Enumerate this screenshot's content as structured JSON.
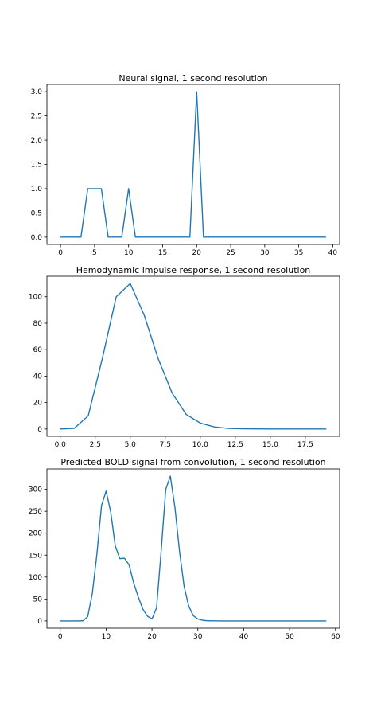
{
  "chart_data": [
    {
      "type": "line",
      "title": "Neural signal, 1 second resolution",
      "xlabel": "",
      "ylabel": "",
      "xlim": [
        -2,
        41
      ],
      "ylim": [
        -0.15,
        3.15
      ],
      "xticks": [
        0,
        5,
        10,
        15,
        20,
        25,
        30,
        35,
        40
      ],
      "xtick_labels": [
        "0",
        "5",
        "10",
        "15",
        "20",
        "25",
        "30",
        "35",
        "40"
      ],
      "yticks": [
        0.0,
        0.5,
        1.0,
        1.5,
        2.0,
        2.5,
        3.0
      ],
      "ytick_labels": [
        "0.0",
        "0.5",
        "1.0",
        "1.5",
        "2.0",
        "2.5",
        "3.0"
      ],
      "color": "#1f77b4",
      "grid": false,
      "series": [
        {
          "x": [
            0,
            1,
            2,
            3,
            4,
            5,
            6,
            7,
            8,
            9,
            10,
            11,
            12,
            13,
            14,
            15,
            16,
            17,
            18,
            19,
            20,
            21,
            22,
            23,
            24,
            25,
            26,
            27,
            28,
            29,
            30,
            31,
            32,
            33,
            34,
            35,
            36,
            37,
            38,
            39
          ],
          "values": [
            0,
            0,
            0,
            0,
            1,
            1,
            1,
            0,
            0,
            0,
            1,
            0,
            0,
            0,
            0,
            0,
            0,
            0,
            0,
            0,
            3,
            0,
            0,
            0,
            0,
            0,
            0,
            0,
            0,
            0,
            0,
            0,
            0,
            0,
            0,
            0,
            0,
            0,
            0,
            0
          ]
        }
      ]
    },
    {
      "type": "line",
      "title": "Hemodynamic impulse response, 1 second resolution",
      "xlabel": "",
      "ylabel": "",
      "xlim": [
        -0.95,
        19.95
      ],
      "ylim": [
        -5.5,
        115.5
      ],
      "xticks": [
        0,
        2.5,
        5,
        7.5,
        10,
        12.5,
        15,
        17.5
      ],
      "xtick_labels": [
        "0.0",
        "2.5",
        "5.0",
        "7.5",
        "10.0",
        "12.5",
        "15.0",
        "17.5"
      ],
      "yticks": [
        0,
        20,
        40,
        60,
        80,
        100
      ],
      "ytick_labels": [
        "0",
        "20",
        "40",
        "60",
        "80",
        "100"
      ],
      "color": "#1f77b4",
      "grid": false,
      "series": [
        {
          "x": [
            0,
            1,
            2,
            3,
            4,
            5,
            6,
            7,
            8,
            9,
            10,
            11,
            12,
            13,
            14,
            15,
            16,
            17,
            18,
            19
          ],
          "values": [
            0,
            0.5,
            10,
            53,
            100,
            110,
            86,
            53,
            27,
            11,
            4.5,
            1.6,
            0.5,
            0.2,
            0.1,
            0,
            0,
            0,
            0,
            0
          ]
        }
      ]
    },
    {
      "type": "line",
      "title": "Predicted BOLD signal from convolution, 1 second resolution",
      "xlabel": "",
      "ylabel": "",
      "xlim": [
        -2.9,
        60.9
      ],
      "ylim": [
        -16.5,
        346.5
      ],
      "xticks": [
        0,
        10,
        20,
        30,
        40,
        50,
        60
      ],
      "xtick_labels": [
        "0",
        "10",
        "20",
        "30",
        "40",
        "50",
        "60"
      ],
      "yticks": [
        0,
        50,
        100,
        150,
        200,
        250,
        300
      ],
      "ytick_labels": [
        "0",
        "50",
        "100",
        "150",
        "200",
        "250",
        "300"
      ],
      "color": "#1f77b4",
      "grid": false,
      "series": [
        {
          "x": [
            0,
            1,
            2,
            3,
            4,
            5,
            6,
            7,
            8,
            9,
            10,
            11,
            12,
            13,
            14,
            15,
            16,
            17,
            18,
            19,
            20,
            21,
            22,
            23,
            24,
            25,
            26,
            27,
            28,
            29,
            30,
            31,
            32,
            33,
            34,
            35,
            36,
            37,
            38,
            39,
            40,
            41,
            42,
            43,
            44,
            45,
            46,
            47,
            48,
            49,
            50,
            51,
            52,
            53,
            54,
            55,
            56,
            57,
            58
          ],
          "values": [
            0,
            0,
            0,
            0,
            0,
            0.5,
            10,
            63,
            153,
            263,
            296,
            249,
            171,
            142,
            143,
            128,
            87,
            55,
            27,
            11,
            4.5,
            30,
            159,
            300,
            330,
            259,
            159,
            79,
            34,
            12,
            4.5,
            1.6,
            0.5,
            0.2,
            0.1,
            0,
            0,
            0,
            0,
            0,
            0,
            0,
            0,
            0,
            0,
            0,
            0,
            0,
            0,
            0,
            0,
            0,
            0,
            0,
            0,
            0,
            0,
            0,
            0
          ]
        }
      ]
    }
  ]
}
